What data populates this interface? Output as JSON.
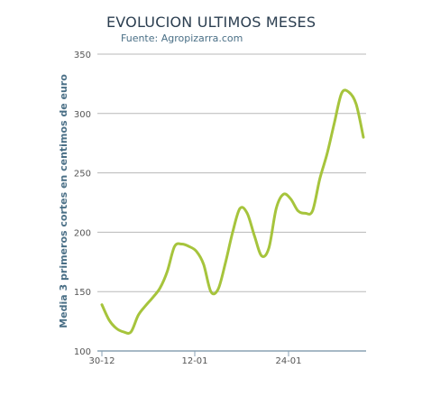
{
  "chart_data": {
    "type": "line",
    "title": "EVOLUCION ULTIMOS MESES",
    "subtitle": "Fuente: Agropizarra.com",
    "ylabel": "Media 3 primeros cortes en centimos de euro",
    "xlabel": "",
    "ylim": [
      100,
      350
    ],
    "y_ticks": [
      100,
      150,
      200,
      250,
      300,
      350
    ],
    "x_tick_labels": [
      "30-12",
      "12-01",
      "24-01"
    ],
    "grid": true,
    "series": [
      {
        "color": "#a6c43c",
        "points": [
          {
            "x": 0,
            "y": 139
          },
          {
            "x": 1,
            "y": 126
          },
          {
            "x": 2,
            "y": 119
          },
          {
            "x": 3,
            "y": 116
          },
          {
            "x": 4,
            "y": 116
          },
          {
            "x": 5,
            "y": 130
          },
          {
            "x": 6,
            "y": 138
          },
          {
            "x": 7,
            "y": 145
          },
          {
            "x": 8,
            "y": 153
          },
          {
            "x": 9,
            "y": 167
          },
          {
            "x": 10,
            "y": 188
          },
          {
            "x": 11,
            "y": 190
          },
          {
            "x": 12,
            "y": 188
          },
          {
            "x": 13,
            "y": 184
          },
          {
            "x": 14,
            "y": 173
          },
          {
            "x": 15,
            "y": 150
          },
          {
            "x": 16,
            "y": 152
          },
          {
            "x": 17,
            "y": 174
          },
          {
            "x": 18,
            "y": 200
          },
          {
            "x": 19,
            "y": 220
          },
          {
            "x": 20,
            "y": 216
          },
          {
            "x": 21,
            "y": 197
          },
          {
            "x": 22,
            "y": 180
          },
          {
            "x": 23,
            "y": 187
          },
          {
            "x": 24,
            "y": 220
          },
          {
            "x": 25,
            "y": 232
          },
          {
            "x": 26,
            "y": 228
          },
          {
            "x": 27,
            "y": 218
          },
          {
            "x": 28,
            "y": 216
          },
          {
            "x": 29,
            "y": 218
          },
          {
            "x": 30,
            "y": 245
          },
          {
            "x": 31,
            "y": 266
          },
          {
            "x": 32,
            "y": 292
          },
          {
            "x": 33,
            "y": 317
          },
          {
            "x": 34,
            "y": 318
          },
          {
            "x": 35,
            "y": 308
          },
          {
            "x": 36,
            "y": 280
          }
        ]
      }
    ],
    "colors": {
      "line": "#a6c43c",
      "grid": "#b8b8b8",
      "axis": "#8aa2b4",
      "tick_text": "#555555",
      "title_text": "#2b3e50",
      "subtitle_text": "#4a6f86",
      "ylabel_text": "#4a6f86"
    }
  }
}
